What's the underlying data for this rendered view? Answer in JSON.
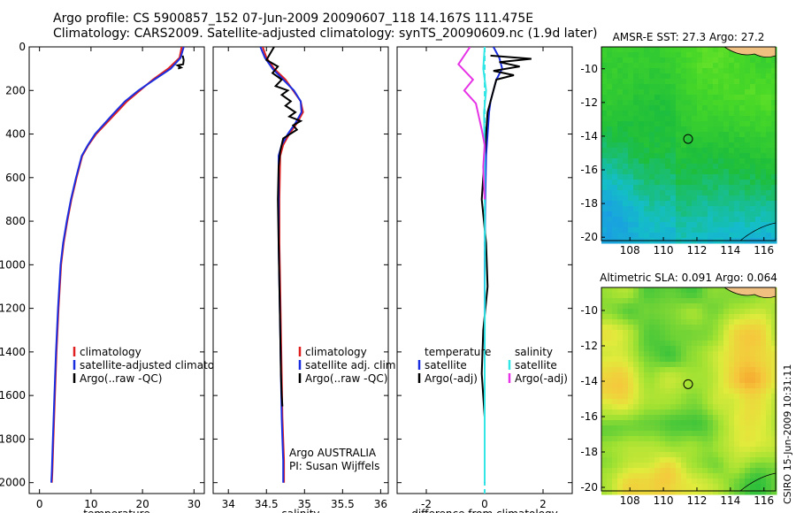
{
  "header": {
    "line1": "Argo profile: CS 5900857_152 07-Jun-2009 20090607_118 14.167S 111.475E",
    "line2": "Climatology: CARS2009. Satellite-adjusted climatology: synTS_20090609.nc (1.9d later)"
  },
  "side_label": "CSIRO 15-Jun-2009 10:31:11",
  "colors": {
    "climatology": "#e02020",
    "satellite": "#1a2ee0",
    "argo": "#000000",
    "sal_satellite": "#33e6e6",
    "sal_argo": "#e633e6"
  },
  "chart_data": [
    {
      "type": "line",
      "name": "temperature-profile",
      "xlabel": "temperature",
      "xlim": [
        -2,
        32
      ],
      "xticks": [
        0,
        10,
        20,
        30
      ],
      "ylim": [
        0,
        2050
      ],
      "yticks": [
        0,
        200,
        400,
        600,
        800,
        1000,
        1200,
        1400,
        1600,
        1800,
        2000
      ],
      "legend": [
        "climatology",
        "satellite-adjusted climatology",
        "Argo(..raw -QC)"
      ],
      "series": [
        {
          "name": "climatology",
          "color": "#e02020",
          "x": [
            27.6,
            27.2,
            25,
            22,
            19.5,
            17,
            15,
            13,
            11,
            9.5,
            8.3,
            7.2,
            6.2,
            5.4,
            4.7,
            4.2,
            3.7,
            3.3,
            3.0,
            2.7,
            2.5,
            2.4
          ],
          "y": [
            0,
            50,
            100,
            150,
            200,
            250,
            300,
            350,
            400,
            450,
            500,
            600,
            700,
            800,
            900,
            1000,
            1200,
            1400,
            1600,
            1800,
            1950,
            2000
          ]
        },
        {
          "name": "satellite-adjusted climatology",
          "color": "#1a2ee0",
          "x": [
            28.0,
            27.4,
            25.5,
            22.3,
            19.2,
            16.6,
            14.6,
            12.7,
            10.8,
            9.4,
            8.2,
            7.1,
            6.1,
            5.3,
            4.6,
            4.1,
            3.6,
            3.2,
            2.9,
            2.6,
            2.4,
            2.3
          ],
          "y": [
            0,
            50,
            100,
            150,
            200,
            250,
            300,
            350,
            400,
            450,
            500,
            600,
            700,
            800,
            900,
            1000,
            1200,
            1400,
            1600,
            1800,
            1950,
            2000
          ]
        },
        {
          "name": "Argo(..raw -QC)",
          "color": "#000000",
          "x": [
            27.8,
            28.0,
            27.9,
            26.8,
            27.5,
            26.9
          ],
          "y": [
            40,
            60,
            80,
            85,
            95,
            100
          ]
        }
      ]
    },
    {
      "type": "line",
      "name": "salinity-profile",
      "xlabel": "salinity",
      "xlim": [
        33.8,
        36.1
      ],
      "xticks": [
        34,
        34.5,
        35,
        35.5,
        36
      ],
      "ylim": [
        0,
        2050
      ],
      "legend": [
        "climatology",
        "satellite adj. clim.",
        "Argo(..raw -QC)"
      ],
      "annotations": [
        "Argo AUSTRALIA",
        "PI: Susan Wijffels"
      ],
      "series": [
        {
          "name": "climatology",
          "color": "#e02020",
          "x": [
            34.45,
            34.5,
            34.6,
            34.75,
            34.85,
            34.95,
            34.98,
            34.9,
            34.8,
            34.72,
            34.68,
            34.67,
            34.67,
            34.68,
            34.69,
            34.7,
            34.71,
            34.72,
            34.73,
            34.73
          ],
          "y": [
            0,
            50,
            100,
            150,
            200,
            250,
            300,
            350,
            400,
            450,
            500,
            700,
            900,
            1100,
            1300,
            1500,
            1700,
            1800,
            1900,
            2000
          ]
        },
        {
          "name": "satellite adj. clim.",
          "color": "#1a2ee0",
          "x": [
            34.42,
            34.48,
            34.58,
            34.72,
            34.86,
            34.95,
            34.96,
            34.88,
            34.78,
            34.7,
            34.66,
            34.66,
            34.66,
            34.67,
            34.68,
            34.69,
            34.7,
            34.71,
            34.72,
            34.72
          ],
          "y": [
            0,
            50,
            100,
            150,
            200,
            250,
            300,
            350,
            400,
            450,
            500,
            700,
            900,
            1100,
            1300,
            1500,
            1700,
            1800,
            1900,
            2000
          ]
        },
        {
          "name": "Argo(..raw -QC)",
          "color": "#000000",
          "x": [
            34.6,
            34.55,
            34.5,
            34.65,
            34.58,
            34.7,
            34.62,
            34.78,
            34.7,
            34.82,
            34.75,
            34.88,
            34.8,
            34.95,
            34.85,
            34.9,
            34.72,
            34.68,
            34.66,
            34.65,
            34.66,
            34.67,
            34.68,
            34.69,
            34.7,
            34.71
          ],
          "y": [
            0,
            30,
            60,
            90,
            120,
            150,
            180,
            200,
            220,
            250,
            270,
            300,
            320,
            340,
            360,
            380,
            420,
            480,
            550,
            700,
            900,
            1100,
            1300,
            1500,
            1600,
            1650
          ]
        }
      ]
    },
    {
      "type": "line",
      "name": "difference-profile",
      "xlabel": "difference from climatology",
      "xlim": [
        -3,
        3
      ],
      "xticks": [
        -2,
        0,
        2
      ],
      "ylim": [
        0,
        2050
      ],
      "legend_left_title": "temperature",
      "legend_right_title": "salinity",
      "legend": [
        "satellite",
        "Argo(-adj)",
        "satellite",
        "Argo(-adj)"
      ],
      "series": [
        {
          "name": "temperature satellite",
          "color": "#1a2ee0",
          "x": [
            0.3,
            0.5,
            0.6,
            0.4,
            0.3,
            0.2,
            0.15,
            0.1,
            0.05,
            0.02,
            0,
            0,
            0
          ],
          "y": [
            0,
            50,
            100,
            150,
            200,
            250,
            300,
            400,
            500,
            700,
            1000,
            1500,
            2000
          ]
        },
        {
          "name": "temperature Argo(-adj)",
          "color": "#000000",
          "x": [
            0.2,
            1.6,
            0.5,
            1.2,
            0.3,
            1.0,
            0.4,
            0.3,
            0.1,
            0.05,
            0,
            -0.1,
            0.05,
            0.1,
            -0.05,
            -0.1,
            0
          ],
          "y": [
            40,
            55,
            70,
            90,
            110,
            130,
            150,
            200,
            300,
            400,
            500,
            700,
            900,
            1100,
            1300,
            1500,
            1700
          ]
        },
        {
          "name": "salinity satellite",
          "color": "#33e6e6",
          "x": [
            0,
            -0.05,
            0.05,
            -0.02,
            0,
            0.01,
            0,
            0
          ],
          "y": [
            0,
            100,
            200,
            300,
            500,
            900,
            1500,
            2000
          ]
        },
        {
          "name": "salinity Argo(-adj)",
          "color": "#e633e6",
          "x": [
            -0.5,
            -0.9,
            -0.4,
            -0.7,
            -0.3,
            -0.2,
            -0.1,
            0,
            -0.05,
            0
          ],
          "y": [
            0,
            80,
            150,
            200,
            260,
            320,
            380,
            450,
            550,
            700
          ]
        }
      ]
    },
    {
      "type": "heatmap",
      "name": "sst-map",
      "title": "AMSR-E SST: 27.3 Argo: 27.2",
      "xlim": [
        106.3,
        116.7
      ],
      "ylim": [
        -20.2,
        -8.7
      ],
      "xticks": [
        108,
        110,
        112,
        114,
        116
      ],
      "yticks": [
        -10,
        -12,
        -14,
        -16,
        -18,
        -20
      ],
      "argo_position": [
        111.475,
        -14.167
      ]
    },
    {
      "type": "heatmap",
      "name": "sla-map",
      "title": "Altimetric SLA: 0.091 Argo: 0.064",
      "xlim": [
        106.3,
        116.7
      ],
      "ylim": [
        -20.2,
        -8.7
      ],
      "xticks": [
        108,
        110,
        112,
        114,
        116
      ],
      "yticks": [
        -10,
        -12,
        -14,
        -16,
        -18,
        -20
      ],
      "argo_position": [
        111.475,
        -14.167
      ]
    }
  ]
}
